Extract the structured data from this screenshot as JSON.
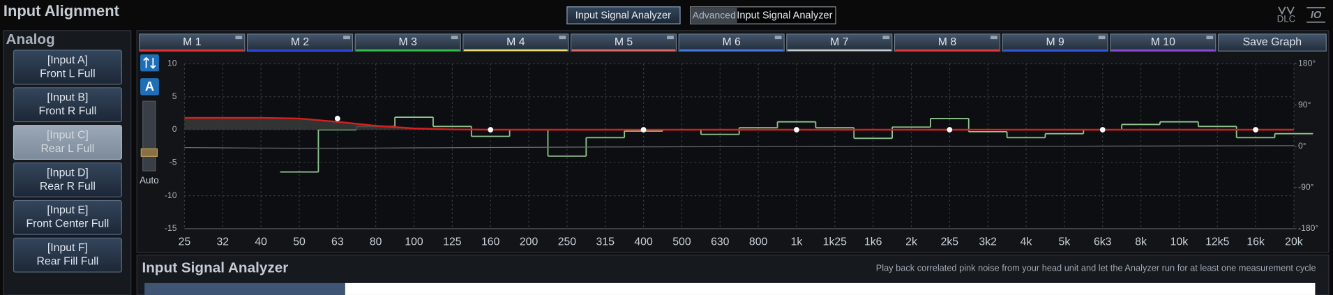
{
  "header": {
    "title": "Input Alignment",
    "tab": "Input Signal Analyzer",
    "advanced": {
      "label": "Advanced",
      "value": "Input Signal Analyzer"
    },
    "icons": [
      "DLC",
      "IO"
    ]
  },
  "sidebar": {
    "title": "Analog",
    "selected": 2,
    "inputs": [
      {
        "label": "[Input A]",
        "name": "Front L Full"
      },
      {
        "label": "[Input B]",
        "name": "Front R Full"
      },
      {
        "label": "[Input C]",
        "name": "Rear L Full"
      },
      {
        "label": "[Input D]",
        "name": "Rear R Full"
      },
      {
        "label": "[Input E]",
        "name": "Front Center Full"
      },
      {
        "label": "[Input F]",
        "name": "Rear Fill Full"
      }
    ]
  },
  "graph_tabs": {
    "tabs": [
      "M 1",
      "M 2",
      "M 3",
      "M 4",
      "M 5",
      "M 6",
      "M 7",
      "M 8",
      "M 9",
      "M 10"
    ],
    "colors": [
      "#e03030",
      "#2a44d8",
      "#34c048",
      "#e6e070",
      "#e06868",
      "#4a78e0",
      "#c8c8c8",
      "#e03838",
      "#3454d8",
      "#8848d8"
    ],
    "save": "Save Graph"
  },
  "controls": {
    "auto_button": "A",
    "auto_label": "Auto"
  },
  "chart_data": {
    "type": "line",
    "categories": [
      "25",
      "32",
      "40",
      "50",
      "63",
      "80",
      "100",
      "125",
      "160",
      "200",
      "250",
      "315",
      "400",
      "500",
      "630",
      "800",
      "1k",
      "1k25",
      "1k6",
      "2k",
      "2k5",
      "3k2",
      "4k",
      "5k",
      "6k3",
      "8k",
      "10k",
      "12k5",
      "16k",
      "20k"
    ],
    "ylim": [
      -15,
      10
    ],
    "yticks": [
      10,
      5,
      0,
      -5,
      -10,
      -15
    ],
    "y2lim": [
      -180,
      180
    ],
    "y2ticks": [
      {
        "value": 180,
        "label": "180°"
      },
      {
        "value": 90,
        "label": "90°"
      },
      {
        "value": 0,
        "label": "0°"
      },
      {
        "value": -90,
        "label": "-90°"
      },
      {
        "value": -180,
        "label": "-180°"
      }
    ],
    "grid": true,
    "series": [
      {
        "color": "#8fc48f",
        "style": "step",
        "values": [
          null,
          null,
          null,
          -6.4,
          0,
          0.5,
          1.9,
          0.5,
          -1,
          0,
          -4,
          -1.2,
          -0.2,
          0,
          -0.7,
          0.3,
          1.2,
          0.3,
          -1.3,
          0.4,
          1.7,
          -0.3,
          -1.2,
          -0.6,
          0,
          0.8,
          1.2,
          0.5,
          -1.2,
          -0.6
        ]
      },
      {
        "color": "#d42020",
        "fill": "#3a3a3a",
        "values": [
          1.8,
          1.8,
          1.8,
          1.7,
          1.2,
          0.6,
          0.2,
          0.05,
          0,
          0,
          0,
          0,
          0,
          0,
          0,
          0,
          0,
          0,
          0,
          0,
          0,
          0,
          0,
          0,
          0,
          0,
          0,
          0,
          0,
          0
        ]
      },
      {
        "color": "#6e6e6e",
        "axis": "y2",
        "values": [
          -3,
          -3.5,
          -4,
          -4.3,
          -4.3,
          -4,
          -3.6,
          -3.2,
          -2.8,
          -2.4,
          -2,
          -1.7,
          -1.4,
          -1.2,
          -1,
          -0.8,
          -0.6,
          -0.5,
          -0.4,
          -0.3,
          -0.2,
          -0.1,
          0,
          0,
          0.2,
          0.4,
          0.6,
          0.8,
          1,
          1.2
        ]
      },
      {
        "color": "#ffffff",
        "style": "points",
        "values": [
          null,
          null,
          null,
          null,
          1.7,
          null,
          null,
          null,
          0,
          null,
          null,
          null,
          0,
          null,
          null,
          null,
          0,
          null,
          null,
          null,
          0,
          null,
          null,
          null,
          0,
          null,
          null,
          null,
          0,
          null
        ]
      }
    ]
  },
  "analyzer": {
    "title": "Input Signal Analyzer",
    "hint": "Play back correlated pink noise from your head unit and let the Analyzer run for at least one measurement cycle"
  }
}
